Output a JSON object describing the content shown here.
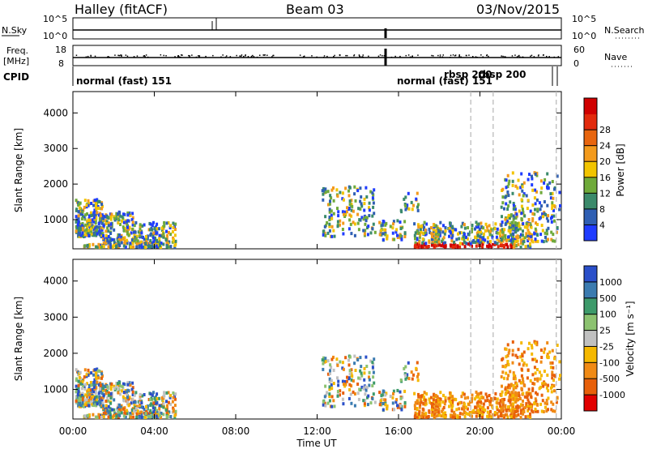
{
  "header": {
    "station": "Halley (fitACF)",
    "beam": "Beam 03",
    "date": "03/Nov/2015"
  },
  "noise_panel": {
    "left_label": "N.Sky",
    "right_label": "N.Search",
    "left_ticks": [
      "10^5",
      "10^0"
    ],
    "right_ticks": [
      "10^5",
      "10^0"
    ]
  },
  "freq_panel": {
    "left_label_1": "Freq.",
    "left_label_2": "[MHz]",
    "right_label": "Nave",
    "left_ticks": [
      "18",
      "8"
    ],
    "right_ticks": [
      "60",
      "0"
    ]
  },
  "cpid": {
    "label": "CPID",
    "segments": [
      {
        "text": "normal (fast) 151",
        "start": 0.0
      },
      {
        "text": "normal (fast) 151",
        "start": 15.5
      },
      {
        "text": "rbsp 200",
        "start": 19.6
      },
      {
        "text": "rbsp 200",
        "start": 20.7
      }
    ]
  },
  "chart_data": [
    {
      "type": "heatmap",
      "name": "power",
      "ylabel": "Slant Range [km]",
      "yticks": [
        1000,
        2000,
        3000,
        4000
      ],
      "ylim": [
        180,
        4600
      ],
      "xlim": [
        0,
        24
      ],
      "colorbar_label": "Power [dB]",
      "colorbar_ticks": [
        "4",
        "8",
        "12",
        "16",
        "20",
        "24",
        "28"
      ],
      "colors": [
        "#1f3cff",
        "#2f5fb3",
        "#3b8a6b",
        "#6faa3a",
        "#f2c400",
        "#f39a1c",
        "#e8650e",
        "#e22a0c",
        "#d00000"
      ]
    },
    {
      "type": "heatmap",
      "name": "velocity",
      "ylabel": "Slant Range [km]",
      "xlabel": "Time UT",
      "xticks": [
        "00:00",
        "04:00",
        "08:00",
        "12:00",
        "16:00",
        "20:00",
        "00:00"
      ],
      "yticks": [
        1000,
        2000,
        3000,
        4000
      ],
      "ylim": [
        180,
        4600
      ],
      "xlim": [
        0,
        24
      ],
      "colorbar_label": "Velocity [m s⁻¹]",
      "colorbar_ticks": [
        "1000",
        "500",
        "100",
        "25",
        "-25",
        "-100",
        "-500",
        "-1000"
      ],
      "colors": [
        "#2a4fc9",
        "#3b7bb0",
        "#3d9a6a",
        "#8cc270",
        "#c0c0c0",
        "#f5b800",
        "#f08a15",
        "#e8600a",
        "#e10000"
      ]
    }
  ]
}
